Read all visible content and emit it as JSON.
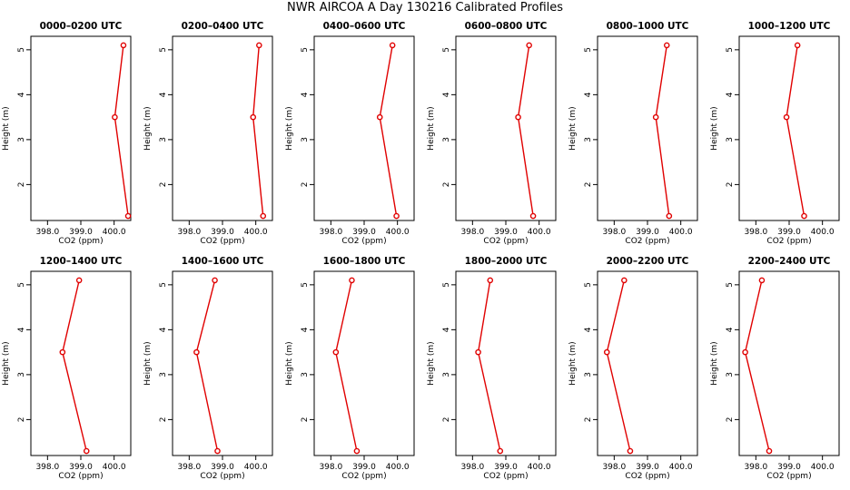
{
  "title": "NWR AIRCOA A  Day 130216  Calibrated Profiles",
  "chart_data": [
    {
      "type": "line",
      "title": "0000–0200 UTC",
      "xlabel": "CO2 (ppm)",
      "ylabel": "Height (m)",
      "xlim": [
        397.5,
        400.5
      ],
      "ylim": [
        1.2,
        5.3
      ],
      "xticks": [
        "398.0",
        "399.0",
        "400.0"
      ],
      "yticks": [
        "2",
        "3",
        "4",
        "5"
      ],
      "color": "#e00000",
      "series": [
        {
          "x": [
            400.28,
            400.02,
            400.42
          ],
          "y": [
            5.1,
            3.5,
            1.3
          ]
        }
      ]
    },
    {
      "type": "line",
      "title": "0200–0400 UTC",
      "xlabel": "CO2 (ppm)",
      "ylabel": "Height (m)",
      "xlim": [
        397.5,
        400.5
      ],
      "ylim": [
        1.2,
        5.3
      ],
      "xticks": [
        "398.0",
        "399.0",
        "400.0"
      ],
      "yticks": [
        "2",
        "3",
        "4",
        "5"
      ],
      "color": "#e00000",
      "series": [
        {
          "x": [
            400.1,
            399.92,
            400.22
          ],
          "y": [
            5.1,
            3.5,
            1.3
          ]
        }
      ]
    },
    {
      "type": "line",
      "title": "0400–0600 UTC",
      "xlabel": "CO2 (ppm)",
      "ylabel": "Height (m)",
      "xlim": [
        397.5,
        400.5
      ],
      "ylim": [
        1.2,
        5.3
      ],
      "xticks": [
        "398.0",
        "399.0",
        "400.0"
      ],
      "yticks": [
        "2",
        "3",
        "4",
        "5"
      ],
      "color": "#e00000",
      "series": [
        {
          "x": [
            399.85,
            399.47,
            399.97
          ],
          "y": [
            5.1,
            3.5,
            1.3
          ]
        }
      ]
    },
    {
      "type": "line",
      "title": "0600–0800 UTC",
      "xlabel": "CO2 (ppm)",
      "ylabel": "Height (m)",
      "xlim": [
        397.5,
        400.5
      ],
      "ylim": [
        1.2,
        5.3
      ],
      "xticks": [
        "398.0",
        "399.0",
        "400.0"
      ],
      "yticks": [
        "2",
        "3",
        "4",
        "5"
      ],
      "color": "#e00000",
      "series": [
        {
          "x": [
            399.7,
            399.37,
            399.82
          ],
          "y": [
            5.1,
            3.5,
            1.3
          ]
        }
      ]
    },
    {
      "type": "line",
      "title": "0800–1000 UTC",
      "xlabel": "CO2 (ppm)",
      "ylabel": "Height (m)",
      "xlim": [
        397.5,
        400.5
      ],
      "ylim": [
        1.2,
        5.3
      ],
      "xticks": [
        "398.0",
        "399.0",
        "400.0"
      ],
      "yticks": [
        "2",
        "3",
        "4",
        "5"
      ],
      "color": "#e00000",
      "series": [
        {
          "x": [
            399.58,
            399.25,
            399.65
          ],
          "y": [
            5.1,
            3.5,
            1.3
          ]
        }
      ]
    },
    {
      "type": "line",
      "title": "1000–1200 UTC",
      "xlabel": "CO2 (ppm)",
      "ylabel": "Height (m)",
      "xlim": [
        397.5,
        400.5
      ],
      "ylim": [
        1.2,
        5.3
      ],
      "xticks": [
        "398.0",
        "399.0",
        "400.0"
      ],
      "yticks": [
        "2",
        "3",
        "4",
        "5"
      ],
      "color": "#e00000",
      "series": [
        {
          "x": [
            399.25,
            398.92,
            399.45
          ],
          "y": [
            5.1,
            3.5,
            1.3
          ]
        }
      ]
    },
    {
      "type": "line",
      "title": "1200–1400 UTC",
      "xlabel": "CO2 (ppm)",
      "ylabel": "Height (m)",
      "xlim": [
        397.5,
        400.5
      ],
      "ylim": [
        1.2,
        5.3
      ],
      "xticks": [
        "398.0",
        "399.0",
        "400.0"
      ],
      "yticks": [
        "2",
        "3",
        "4",
        "5"
      ],
      "color": "#e00000",
      "series": [
        {
          "x": [
            398.95,
            398.45,
            399.17
          ],
          "y": [
            5.1,
            3.5,
            1.3
          ]
        }
      ]
    },
    {
      "type": "line",
      "title": "1400–1600 UTC",
      "xlabel": "CO2 (ppm)",
      "ylabel": "Height (m)",
      "xlim": [
        397.5,
        400.5
      ],
      "ylim": [
        1.2,
        5.3
      ],
      "xticks": [
        "398.0",
        "399.0",
        "400.0"
      ],
      "yticks": [
        "2",
        "3",
        "4",
        "5"
      ],
      "color": "#e00000",
      "series": [
        {
          "x": [
            398.77,
            398.22,
            398.85
          ],
          "y": [
            5.1,
            3.5,
            1.3
          ]
        }
      ]
    },
    {
      "type": "line",
      "title": "1600–1800 UTC",
      "xlabel": "CO2 (ppm)",
      "ylabel": "Height (m)",
      "xlim": [
        397.5,
        400.5
      ],
      "ylim": [
        1.2,
        5.3
      ],
      "xticks": [
        "398.0",
        "399.0",
        "400.0"
      ],
      "yticks": [
        "2",
        "3",
        "4",
        "5"
      ],
      "color": "#e00000",
      "series": [
        {
          "x": [
            398.63,
            398.15,
            398.78
          ],
          "y": [
            5.1,
            3.5,
            1.3
          ]
        }
      ]
    },
    {
      "type": "line",
      "title": "1800–2000 UTC",
      "xlabel": "CO2 (ppm)",
      "ylabel": "Height (m)",
      "xlim": [
        397.5,
        400.5
      ],
      "ylim": [
        1.2,
        5.3
      ],
      "xticks": [
        "398.0",
        "399.0",
        "400.0"
      ],
      "yticks": [
        "2",
        "3",
        "4",
        "5"
      ],
      "color": "#e00000",
      "series": [
        {
          "x": [
            398.53,
            398.17,
            398.83
          ],
          "y": [
            5.1,
            3.5,
            1.3
          ]
        }
      ]
    },
    {
      "type": "line",
      "title": "2000–2200 UTC",
      "xlabel": "CO2 (ppm)",
      "ylabel": "Height (m)",
      "xlim": [
        397.5,
        400.5
      ],
      "ylim": [
        1.2,
        5.3
      ],
      "xticks": [
        "398.0",
        "399.0",
        "400.0"
      ],
      "yticks": [
        "2",
        "3",
        "4",
        "5"
      ],
      "color": "#e00000",
      "series": [
        {
          "x": [
            398.3,
            397.78,
            398.48
          ],
          "y": [
            5.1,
            3.5,
            1.3
          ]
        }
      ]
    },
    {
      "type": "line",
      "title": "2200–2400 UTC",
      "xlabel": "CO2 (ppm)",
      "ylabel": "Height (m)",
      "xlim": [
        397.5,
        400.5
      ],
      "ylim": [
        1.2,
        5.3
      ],
      "xticks": [
        "398.0",
        "399.0",
        "400.0"
      ],
      "yticks": [
        "2",
        "3",
        "4",
        "5"
      ],
      "color": "#e00000",
      "series": [
        {
          "x": [
            398.18,
            397.68,
            398.4
          ],
          "y": [
            5.1,
            3.5,
            1.3
          ]
        }
      ]
    }
  ]
}
